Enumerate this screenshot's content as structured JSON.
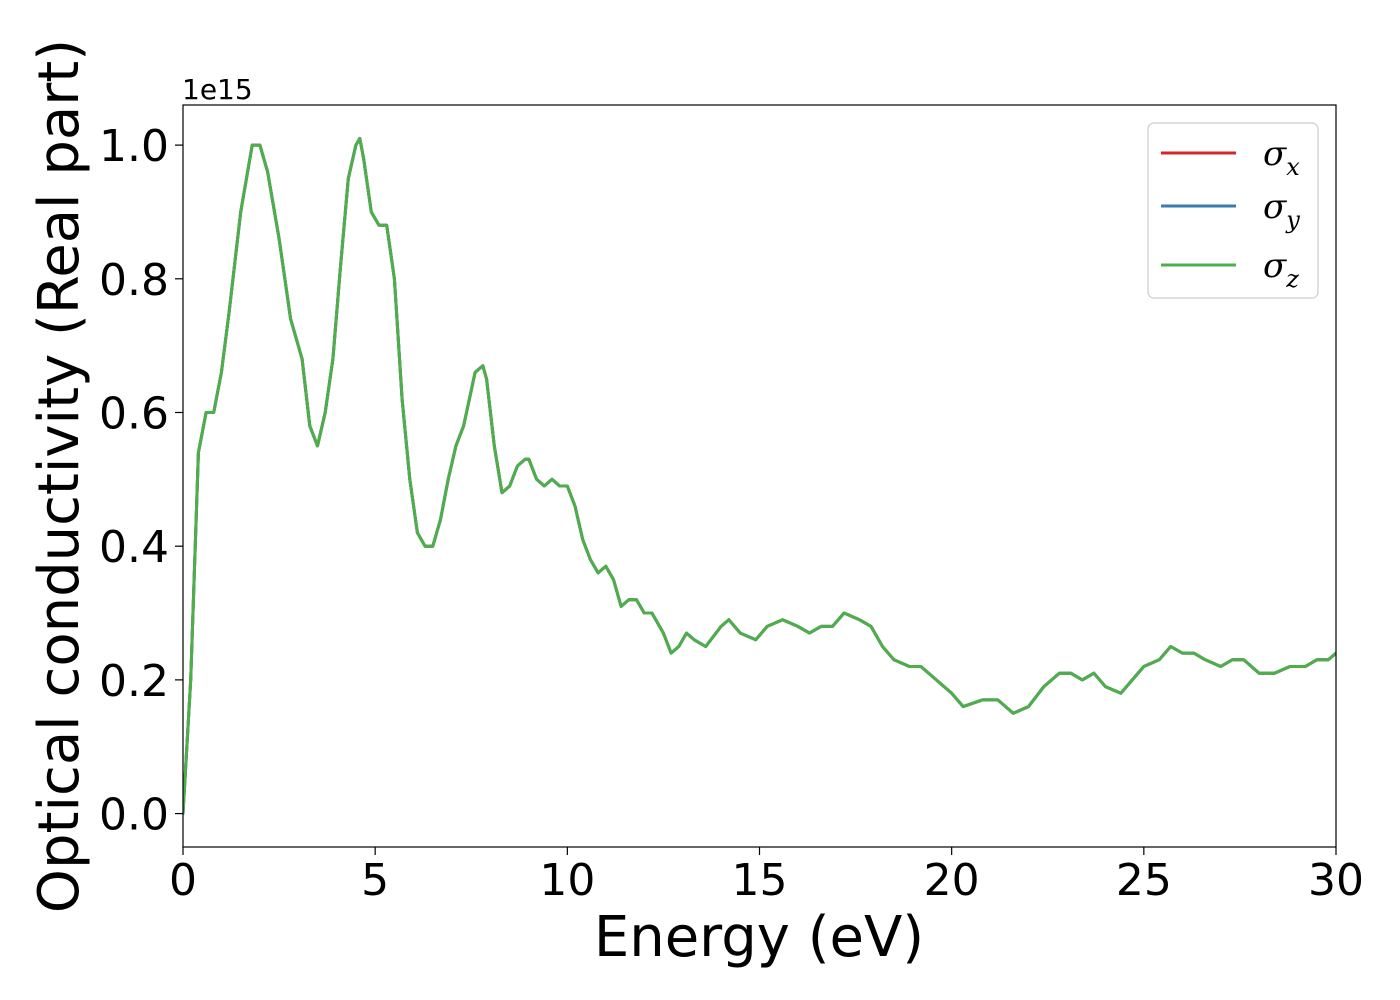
{
  "chart_data": {
    "type": "line",
    "title": "",
    "xlabel": "Energy (eV)",
    "ylabel": "Optical conductivity (Real part)",
    "y_offset_text": "1e15",
    "y_multiplier": 1000000000000000.0,
    "xlim": [
      0,
      30
    ],
    "ylim": [
      -0.05,
      1.06
    ],
    "xticks": [
      0,
      5,
      10,
      15,
      20,
      25,
      30
    ],
    "xtick_labels": [
      "0",
      "5",
      "10",
      "15",
      "20",
      "25",
      "30"
    ],
    "yticks": [
      0.0,
      0.2,
      0.4,
      0.6,
      0.8,
      1.0
    ],
    "ytick_labels": [
      "0.0",
      "0.2",
      "0.4",
      "0.6",
      "0.8",
      "1.0"
    ],
    "grid": false,
    "legend_position": "top-right",
    "x": [
      0,
      0.2,
      0.4,
      0.6,
      0.8,
      1.0,
      1.2,
      1.5,
      1.8,
      2.0,
      2.2,
      2.5,
      2.8,
      3.1,
      3.3,
      3.5,
      3.7,
      3.9,
      4.1,
      4.3,
      4.5,
      4.6,
      4.7,
      4.9,
      5.1,
      5.3,
      5.5,
      5.7,
      5.9,
      6.1,
      6.3,
      6.5,
      6.7,
      6.9,
      7.1,
      7.3,
      7.6,
      7.8,
      7.9,
      8.1,
      8.3,
      8.5,
      8.7,
      8.9,
      9.0,
      9.2,
      9.4,
      9.6,
      9.8,
      10.0,
      10.2,
      10.4,
      10.6,
      10.8,
      11.0,
      11.2,
      11.4,
      11.6,
      11.8,
      12.0,
      12.2,
      12.5,
      12.7,
      12.9,
      13.1,
      13.3,
      13.6,
      14.0,
      14.2,
      14.5,
      14.9,
      15.2,
      15.6,
      16.0,
      16.3,
      16.6,
      16.9,
      17.2,
      17.6,
      17.9,
      18.2,
      18.5,
      18.9,
      19.2,
      19.6,
      20.0,
      20.3,
      20.8,
      21.2,
      21.6,
      22.0,
      22.4,
      22.8,
      23.1,
      23.4,
      23.7,
      24.0,
      24.4,
      24.7,
      25.0,
      25.4,
      25.7,
      26.0,
      26.3,
      26.6,
      27.0,
      27.3,
      27.6,
      28.0,
      28.4,
      28.8,
      29.2,
      29.5,
      29.8,
      30.0
    ],
    "series": [
      {
        "name": "σx",
        "color": "#d62728",
        "values": [
          0.0,
          0.2,
          0.54,
          0.6,
          0.6,
          0.66,
          0.75,
          0.9,
          1.0,
          1.0,
          0.96,
          0.86,
          0.74,
          0.68,
          0.58,
          0.55,
          0.6,
          0.68,
          0.82,
          0.95,
          1.0,
          1.01,
          0.98,
          0.9,
          0.88,
          0.88,
          0.8,
          0.62,
          0.5,
          0.42,
          0.4,
          0.4,
          0.44,
          0.5,
          0.55,
          0.58,
          0.66,
          0.67,
          0.65,
          0.55,
          0.48,
          0.49,
          0.52,
          0.53,
          0.53,
          0.5,
          0.49,
          0.5,
          0.49,
          0.49,
          0.46,
          0.41,
          0.38,
          0.36,
          0.37,
          0.35,
          0.31,
          0.32,
          0.32,
          0.3,
          0.3,
          0.27,
          0.24,
          0.25,
          0.27,
          0.26,
          0.25,
          0.28,
          0.29,
          0.27,
          0.26,
          0.28,
          0.29,
          0.28,
          0.27,
          0.28,
          0.28,
          0.3,
          0.29,
          0.28,
          0.25,
          0.23,
          0.22,
          0.22,
          0.2,
          0.18,
          0.16,
          0.17,
          0.17,
          0.15,
          0.16,
          0.19,
          0.21,
          0.21,
          0.2,
          0.21,
          0.19,
          0.18,
          0.2,
          0.22,
          0.23,
          0.25,
          0.24,
          0.24,
          0.23,
          0.22,
          0.23,
          0.23,
          0.21,
          0.21,
          0.22,
          0.22,
          0.23,
          0.23,
          0.24
        ]
      },
      {
        "name": "σy",
        "color": "#3a7bb4",
        "values": [
          0.0,
          0.2,
          0.54,
          0.6,
          0.6,
          0.66,
          0.75,
          0.9,
          1.0,
          1.0,
          0.96,
          0.86,
          0.74,
          0.68,
          0.58,
          0.55,
          0.6,
          0.68,
          0.82,
          0.95,
          1.0,
          1.01,
          0.98,
          0.9,
          0.88,
          0.88,
          0.8,
          0.62,
          0.5,
          0.42,
          0.4,
          0.4,
          0.44,
          0.5,
          0.55,
          0.58,
          0.66,
          0.67,
          0.65,
          0.55,
          0.48,
          0.49,
          0.52,
          0.53,
          0.53,
          0.5,
          0.49,
          0.5,
          0.49,
          0.49,
          0.46,
          0.41,
          0.38,
          0.36,
          0.37,
          0.35,
          0.31,
          0.32,
          0.32,
          0.3,
          0.3,
          0.27,
          0.24,
          0.25,
          0.27,
          0.26,
          0.25,
          0.28,
          0.29,
          0.27,
          0.26,
          0.28,
          0.29,
          0.28,
          0.27,
          0.28,
          0.28,
          0.3,
          0.29,
          0.28,
          0.25,
          0.23,
          0.22,
          0.22,
          0.2,
          0.18,
          0.16,
          0.17,
          0.17,
          0.15,
          0.16,
          0.19,
          0.21,
          0.21,
          0.2,
          0.21,
          0.19,
          0.18,
          0.2,
          0.22,
          0.23,
          0.25,
          0.24,
          0.24,
          0.23,
          0.22,
          0.23,
          0.23,
          0.21,
          0.21,
          0.22,
          0.22,
          0.23,
          0.23,
          0.24
        ]
      },
      {
        "name": "σz",
        "color": "#4daf4a",
        "values": [
          0.0,
          0.2,
          0.54,
          0.6,
          0.6,
          0.66,
          0.75,
          0.9,
          1.0,
          1.0,
          0.96,
          0.86,
          0.74,
          0.68,
          0.58,
          0.55,
          0.6,
          0.68,
          0.82,
          0.95,
          1.0,
          1.01,
          0.98,
          0.9,
          0.88,
          0.88,
          0.8,
          0.62,
          0.5,
          0.42,
          0.4,
          0.4,
          0.44,
          0.5,
          0.55,
          0.58,
          0.66,
          0.67,
          0.65,
          0.55,
          0.48,
          0.49,
          0.52,
          0.53,
          0.53,
          0.5,
          0.49,
          0.5,
          0.49,
          0.49,
          0.46,
          0.41,
          0.38,
          0.36,
          0.37,
          0.35,
          0.31,
          0.32,
          0.32,
          0.3,
          0.3,
          0.27,
          0.24,
          0.25,
          0.27,
          0.26,
          0.25,
          0.28,
          0.29,
          0.27,
          0.26,
          0.28,
          0.29,
          0.28,
          0.27,
          0.28,
          0.28,
          0.3,
          0.29,
          0.28,
          0.25,
          0.23,
          0.22,
          0.22,
          0.2,
          0.18,
          0.16,
          0.17,
          0.17,
          0.15,
          0.16,
          0.19,
          0.21,
          0.21,
          0.2,
          0.21,
          0.19,
          0.18,
          0.2,
          0.22,
          0.23,
          0.25,
          0.24,
          0.24,
          0.23,
          0.22,
          0.23,
          0.23,
          0.21,
          0.21,
          0.22,
          0.22,
          0.23,
          0.23,
          0.24
        ]
      }
    ],
    "legend": [
      {
        "symbol": "σ",
        "sub": "x",
        "color": "#d62728"
      },
      {
        "symbol": "σ",
        "sub": "y",
        "color": "#3a7bb4"
      },
      {
        "symbol": "σ",
        "sub": "z",
        "color": "#4daf4a"
      }
    ]
  }
}
